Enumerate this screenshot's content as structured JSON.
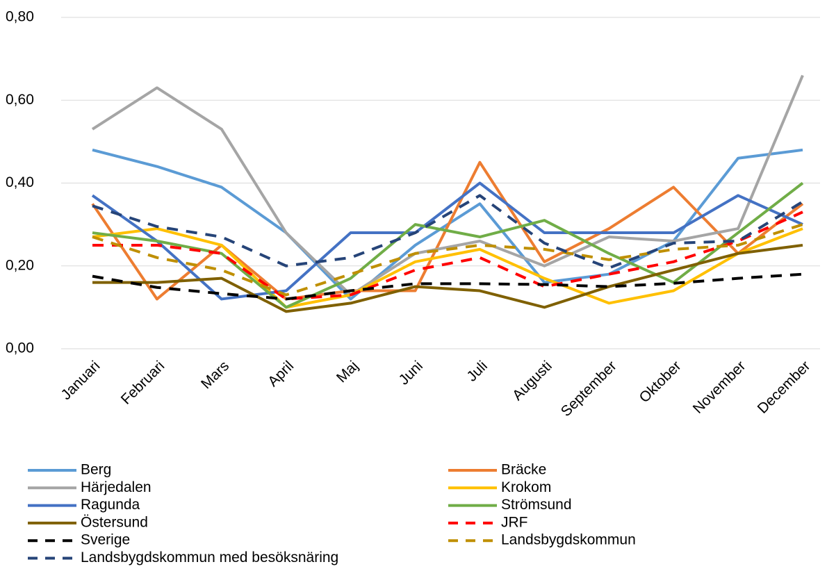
{
  "chart_data": {
    "type": "line",
    "categories": [
      "Januari",
      "Februari",
      "Mars",
      "April",
      "Maj",
      "Juni",
      "Juli",
      "Augusti",
      "September",
      "Oktober",
      "November",
      "December"
    ],
    "ylim": [
      0,
      0.8
    ],
    "yticks": [
      {
        "value": 0,
        "label": "0,00"
      },
      {
        "value": 0.2,
        "label": "0,20"
      },
      {
        "value": 0.4,
        "label": "0,40"
      },
      {
        "value": 0.6,
        "label": "0,60"
      },
      {
        "value": 0.8,
        "label": "0,80"
      }
    ],
    "grid": true,
    "legend": "bottom",
    "series": [
      {
        "name": "Berg",
        "color": "#5b9bd5",
        "dashed": false,
        "values": [
          0.48,
          0.44,
          0.39,
          0.28,
          0.12,
          0.25,
          0.35,
          0.16,
          0.18,
          0.26,
          0.46,
          0.48
        ]
      },
      {
        "name": "Bräcke",
        "color": "#ed7d31",
        "dashed": false,
        "values": [
          0.35,
          0.12,
          0.25,
          0.12,
          0.14,
          0.14,
          0.45,
          0.21,
          0.29,
          0.39,
          0.23,
          0.35
        ]
      },
      {
        "name": "Härjedalen",
        "color": "#a5a5a5",
        "dashed": false,
        "values": [
          0.53,
          0.63,
          0.53,
          0.28,
          0.13,
          0.23,
          0.26,
          0.2,
          0.27,
          0.26,
          0.29,
          0.66
        ]
      },
      {
        "name": "Krokom",
        "color": "#ffc000",
        "dashed": false,
        "values": [
          0.27,
          0.29,
          0.25,
          0.1,
          0.13,
          0.21,
          0.24,
          0.17,
          0.11,
          0.14,
          0.23,
          0.29
        ]
      },
      {
        "name": "Ragunda",
        "color": "#4472c4",
        "dashed": false,
        "values": [
          0.37,
          0.26,
          0.12,
          0.14,
          0.28,
          0.28,
          0.4,
          0.28,
          0.28,
          0.28,
          0.37,
          0.3
        ]
      },
      {
        "name": "Strömsund",
        "color": "#70ad47",
        "dashed": false,
        "values": [
          0.28,
          0.26,
          0.23,
          0.1,
          0.17,
          0.3,
          0.27,
          0.31,
          0.23,
          0.16,
          0.28,
          0.4
        ]
      },
      {
        "name": "Östersund",
        "color": "#7f6000",
        "dashed": false,
        "values": [
          0.16,
          0.16,
          0.17,
          0.09,
          0.11,
          0.15,
          0.14,
          0.1,
          0.15,
          0.19,
          0.23,
          0.25
        ]
      },
      {
        "name": "JRF",
        "color": "#ff0000",
        "dashed": true,
        "values": [
          0.25,
          0.25,
          0.23,
          0.12,
          0.13,
          0.19,
          0.22,
          0.15,
          0.18,
          0.21,
          0.26,
          0.33
        ]
      },
      {
        "name": "Sverige",
        "color": "#000000",
        "dashed": true,
        "values": [
          0.175,
          0.148,
          0.133,
          0.12,
          0.14,
          0.157,
          0.157,
          0.155,
          0.15,
          0.158,
          0.17,
          0.18
        ]
      },
      {
        "name": "Landsbygdskommun",
        "color": "#bf8f00",
        "dashed": true,
        "values": [
          0.27,
          0.22,
          0.19,
          0.13,
          0.18,
          0.23,
          0.25,
          0.24,
          0.215,
          0.24,
          0.25,
          0.3
        ]
      },
      {
        "name": "Landsbygdskommun med besöksnäring",
        "color": "#264478",
        "dashed": true,
        "values": [
          0.345,
          0.295,
          0.27,
          0.2,
          0.22,
          0.28,
          0.37,
          0.255,
          0.195,
          0.255,
          0.26,
          0.355
        ]
      }
    ]
  }
}
